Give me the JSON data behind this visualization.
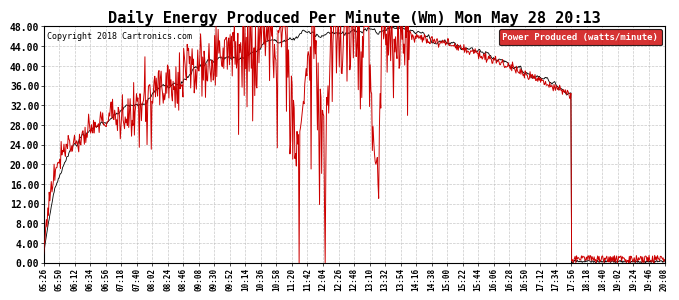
{
  "title": "Daily Energy Produced Per Minute (Wm) Mon May 28 20:13",
  "copyright": "Copyright 2018 Cartronics.com",
  "legend_label": "Power Produced (watts/minute)",
  "legend_bg": "#cc0000",
  "legend_fg": "#ffffff",
  "line_color_black": "#000000",
  "line_color_red": "#cc0000",
  "bg_color": "#ffffff",
  "grid_color": "#bbbbbb",
  "ylim": [
    0,
    48
  ],
  "yticks": [
    0,
    4,
    8,
    12,
    16,
    20,
    24,
    28,
    32,
    36,
    40,
    44,
    48
  ],
  "title_fontsize": 11,
  "copyright_fontsize": 6,
  "xtick_fontsize": 5.5,
  "ytick_fontsize": 7,
  "xtick_labels": [
    "05:26",
    "05:50",
    "06:12",
    "06:34",
    "06:56",
    "07:18",
    "07:40",
    "08:02",
    "08:24",
    "08:46",
    "09:08",
    "09:30",
    "09:52",
    "10:14",
    "10:36",
    "10:58",
    "11:20",
    "11:42",
    "12:04",
    "12:26",
    "12:48",
    "13:10",
    "13:32",
    "13:54",
    "14:16",
    "14:38",
    "15:00",
    "15:22",
    "15:44",
    "16:06",
    "16:28",
    "16:50",
    "17:12",
    "17:34",
    "17:56",
    "18:18",
    "18:40",
    "19:02",
    "19:24",
    "19:46",
    "20:08"
  ]
}
